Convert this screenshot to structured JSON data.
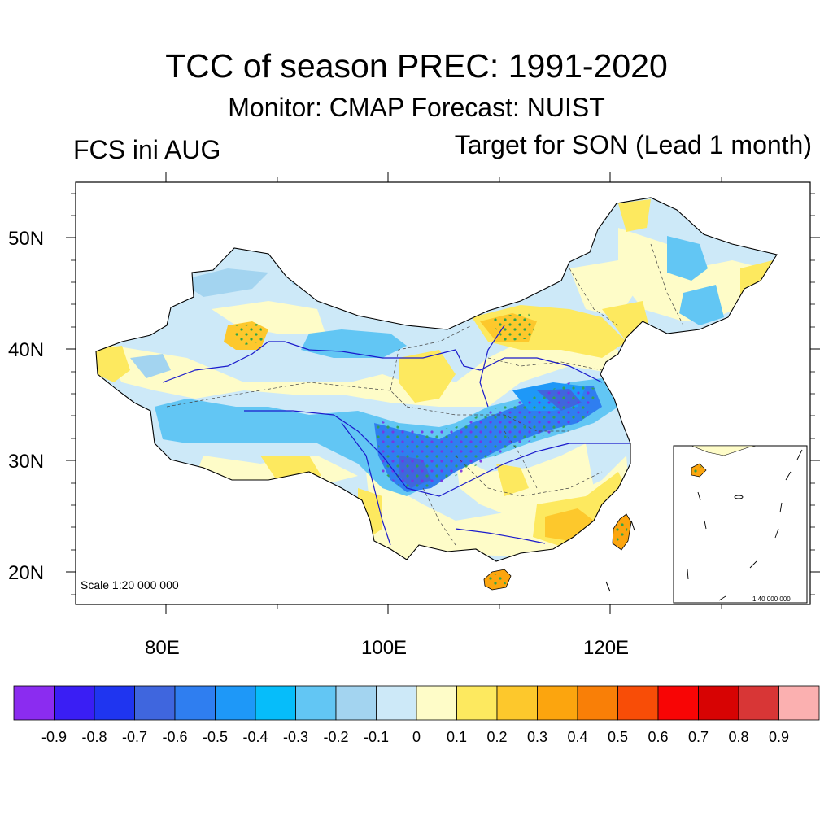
{
  "header": {
    "title": "TCC of season PREC: 1991-2020",
    "subtitle": "Monitor: CMAP   Forecast: NUIST",
    "left_label": "FCS ini AUG",
    "right_label": "Target for SON (Lead 1 month)"
  },
  "axes": {
    "lat_labels": [
      "50N",
      "40N",
      "30N",
      "20N"
    ],
    "lon_labels": [
      "80E",
      "100E",
      "120E"
    ]
  },
  "map": {
    "scale_text": "Scale 1:20 000 000",
    "inset_scale_text": "1:40 000 000"
  },
  "colorbar": {
    "colors": [
      "#8b2cf0",
      "#3a1ef4",
      "#1f35f0",
      "#3f66de",
      "#2f7ef0",
      "#1e98f8",
      "#06bdfa",
      "#62c6f4",
      "#a3d4f0",
      "#cde9f8",
      "#fefcc8",
      "#fde95f",
      "#fdc82c",
      "#fca50e",
      "#f97f07",
      "#f84d07",
      "#f80505",
      "#d70303",
      "#d83636",
      "#fbb0b0"
    ],
    "labels": [
      "-0.9",
      "-0.8",
      "-0.7",
      "-0.6",
      "-0.5",
      "-0.4",
      "-0.3",
      "-0.2",
      "-0.1",
      "0",
      "0.1",
      "0.2",
      "0.3",
      "0.4",
      "0.5",
      "0.6",
      "0.7",
      "0.8",
      "0.9"
    ]
  }
}
